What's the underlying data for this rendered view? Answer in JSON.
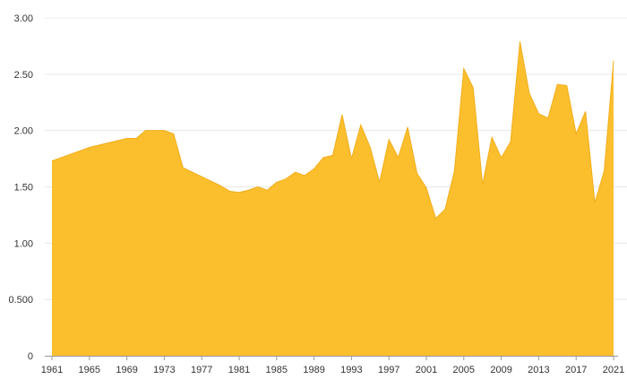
{
  "chart_data": {
    "type": "area",
    "title": "",
    "xlabel": "",
    "ylabel": "",
    "ylim": [
      0,
      3
    ],
    "xlim": [
      1961,
      2021
    ],
    "grid": "horizontal",
    "legend": "none",
    "fill_color": "#fbbf2e",
    "line_color": "#f2ad1b",
    "y_ticks": [
      {
        "value": 0,
        "label": "0"
      },
      {
        "value": 0.5,
        "label": "0.500"
      },
      {
        "value": 1.0,
        "label": "1.00"
      },
      {
        "value": 1.5,
        "label": "1.50"
      },
      {
        "value": 2.0,
        "label": "2.00"
      },
      {
        "value": 2.5,
        "label": "2.50"
      },
      {
        "value": 3.0,
        "label": "3.00"
      }
    ],
    "x_ticks": [
      {
        "value": 1961,
        "label": "1961"
      },
      {
        "value": 1965,
        "label": "1965"
      },
      {
        "value": 1969,
        "label": "1969"
      },
      {
        "value": 1973,
        "label": "1973"
      },
      {
        "value": 1977,
        "label": "1977"
      },
      {
        "value": 1981,
        "label": "1981"
      },
      {
        "value": 1985,
        "label": "1985"
      },
      {
        "value": 1989,
        "label": "1989"
      },
      {
        "value": 1993,
        "label": "1993"
      },
      {
        "value": 1997,
        "label": "1997"
      },
      {
        "value": 2001,
        "label": "2001"
      },
      {
        "value": 2005,
        "label": "2005"
      },
      {
        "value": 2009,
        "label": "2009"
      },
      {
        "value": 2013,
        "label": "2013"
      },
      {
        "value": 2017,
        "label": "2017"
      },
      {
        "value": 2021,
        "label": "2021"
      }
    ],
    "x": [
      1961,
      1962,
      1963,
      1964,
      1965,
      1966,
      1967,
      1968,
      1969,
      1970,
      1971,
      1972,
      1973,
      1974,
      1975,
      1976,
      1977,
      1978,
      1979,
      1980,
      1981,
      1982,
      1983,
      1984,
      1985,
      1986,
      1987,
      1988,
      1989,
      1990,
      1991,
      1992,
      1993,
      1994,
      1995,
      1996,
      1997,
      1998,
      1999,
      2000,
      2001,
      2002,
      2003,
      2004,
      2005,
      2006,
      2007,
      2008,
      2009,
      2010,
      2011,
      2012,
      2013,
      2014,
      2015,
      2016,
      2017,
      2018,
      2019,
      2020,
      2021
    ],
    "series": [
      {
        "values": [
          1.73,
          1.76,
          1.79,
          1.82,
          1.85,
          1.87,
          1.89,
          1.91,
          1.93,
          1.93,
          2.0,
          2.0,
          2.0,
          1.97,
          1.67,
          1.63,
          1.59,
          1.55,
          1.51,
          1.46,
          1.45,
          1.47,
          1.5,
          1.47,
          1.54,
          1.57,
          1.63,
          1.6,
          1.66,
          1.76,
          1.78,
          2.14,
          1.75,
          2.05,
          1.85,
          1.54,
          1.92,
          1.76,
          2.03,
          1.62,
          1.49,
          1.22,
          1.3,
          1.64,
          2.55,
          2.38,
          1.52,
          1.94,
          1.76,
          1.9,
          2.79,
          2.33,
          2.15,
          2.11,
          2.41,
          2.4,
          1.97,
          2.17,
          1.36,
          1.64,
          2.62
        ]
      }
    ]
  }
}
